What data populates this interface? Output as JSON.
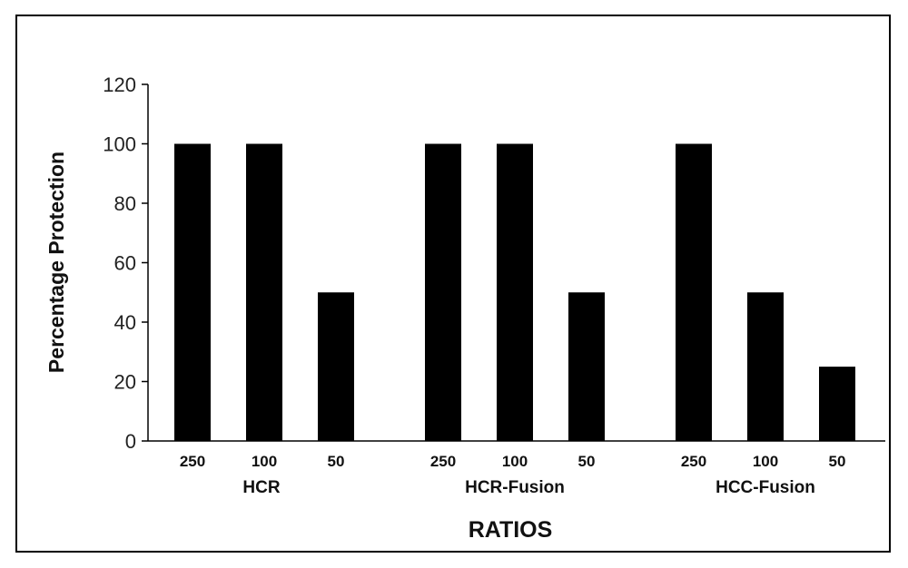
{
  "chart_data": {
    "type": "bar",
    "title": "",
    "xlabel": "RATIOS",
    "ylabel": "Percentage Protection",
    "ylim": [
      0,
      120
    ],
    "ytick_step": 20,
    "grid": false,
    "legend": "none",
    "bar_color": "#000000",
    "groups": [
      {
        "label": "HCR",
        "categories": [
          "250",
          "100",
          "50"
        ],
        "values": [
          100,
          100,
          50
        ]
      },
      {
        "label": "HCR-Fusion",
        "categories": [
          "250",
          "100",
          "50"
        ],
        "values": [
          100,
          100,
          50
        ]
      },
      {
        "label": "HCC-Fusion",
        "categories": [
          "250",
          "100",
          "50"
        ],
        "values": [
          100,
          50,
          25
        ]
      }
    ]
  }
}
